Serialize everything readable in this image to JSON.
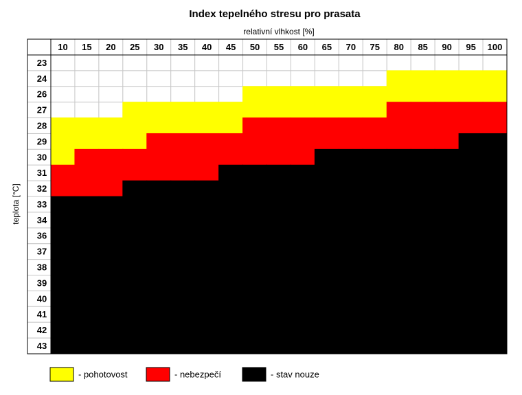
{
  "chart_data": {
    "type": "heatmap",
    "title": "Index tepelného stresu pro prasata",
    "x_label": "relativní vlhkost [%]",
    "y_label": "teplota [°C]",
    "x": [
      10,
      15,
      20,
      25,
      30,
      35,
      40,
      45,
      50,
      55,
      60,
      65,
      70,
      75,
      80,
      85,
      90,
      95,
      100
    ],
    "y": [
      23,
      24,
      26,
      27,
      28,
      29,
      30,
      31,
      32,
      33,
      34,
      36,
      37,
      38,
      39,
      40,
      41,
      42,
      43
    ],
    "series": [
      {
        "name": "- pohotovost",
        "color": "#ffff00"
      },
      {
        "name": "- nebezpečí",
        "color": "#ff0000"
      },
      {
        "name": "- stav nouze",
        "color": "#000000"
      }
    ],
    "values": [
      [
        null,
        null,
        null,
        null,
        null,
        null,
        null,
        null,
        null,
        null,
        null,
        null,
        null,
        null,
        null,
        null,
        null,
        null,
        null
      ],
      [
        null,
        null,
        null,
        null,
        null,
        null,
        null,
        null,
        null,
        null,
        null,
        null,
        null,
        null,
        0,
        0,
        0,
        0,
        0
      ],
      [
        null,
        null,
        null,
        null,
        null,
        null,
        null,
        null,
        0,
        0,
        0,
        0,
        0,
        0,
        0,
        0,
        0,
        0,
        0
      ],
      [
        null,
        null,
        null,
        0,
        0,
        0,
        0,
        0,
        0,
        0,
        0,
        0,
        0,
        0,
        1,
        1,
        1,
        1,
        1
      ],
      [
        0,
        0,
        0,
        0,
        0,
        0,
        0,
        0,
        1,
        1,
        1,
        1,
        1,
        1,
        1,
        1,
        1,
        1,
        1
      ],
      [
        0,
        0,
        0,
        0,
        1,
        1,
        1,
        1,
        1,
        1,
        1,
        1,
        1,
        1,
        1,
        1,
        1,
        2,
        2
      ],
      [
        0,
        1,
        1,
        1,
        1,
        1,
        1,
        1,
        1,
        1,
        1,
        2,
        2,
        2,
        2,
        2,
        2,
        2,
        2
      ],
      [
        1,
        1,
        1,
        1,
        1,
        1,
        1,
        2,
        2,
        2,
        2,
        2,
        2,
        2,
        2,
        2,
        2,
        2,
        2
      ],
      [
        1,
        1,
        1,
        2,
        2,
        2,
        2,
        2,
        2,
        2,
        2,
        2,
        2,
        2,
        2,
        2,
        2,
        2,
        2
      ],
      [
        2,
        2,
        2,
        2,
        2,
        2,
        2,
        2,
        2,
        2,
        2,
        2,
        2,
        2,
        2,
        2,
        2,
        2,
        2
      ],
      [
        2,
        2,
        2,
        2,
        2,
        2,
        2,
        2,
        2,
        2,
        2,
        2,
        2,
        2,
        2,
        2,
        2,
        2,
        2
      ],
      [
        2,
        2,
        2,
        2,
        2,
        2,
        2,
        2,
        2,
        2,
        2,
        2,
        2,
        2,
        2,
        2,
        2,
        2,
        2
      ],
      [
        2,
        2,
        2,
        2,
        2,
        2,
        2,
        2,
        2,
        2,
        2,
        2,
        2,
        2,
        2,
        2,
        2,
        2,
        2
      ],
      [
        2,
        2,
        2,
        2,
        2,
        2,
        2,
        2,
        2,
        2,
        2,
        2,
        2,
        2,
        2,
        2,
        2,
        2,
        2
      ],
      [
        2,
        2,
        2,
        2,
        2,
        2,
        2,
        2,
        2,
        2,
        2,
        2,
        2,
        2,
        2,
        2,
        2,
        2,
        2
      ],
      [
        2,
        2,
        2,
        2,
        2,
        2,
        2,
        2,
        2,
        2,
        2,
        2,
        2,
        2,
        2,
        2,
        2,
        2,
        2
      ],
      [
        2,
        2,
        2,
        2,
        2,
        2,
        2,
        2,
        2,
        2,
        2,
        2,
        2,
        2,
        2,
        2,
        2,
        2,
        2
      ],
      [
        2,
        2,
        2,
        2,
        2,
        2,
        2,
        2,
        2,
        2,
        2,
        2,
        2,
        2,
        2,
        2,
        2,
        2,
        2
      ],
      [
        2,
        2,
        2,
        2,
        2,
        2,
        2,
        2,
        2,
        2,
        2,
        2,
        2,
        2,
        2,
        2,
        2,
        2,
        2
      ]
    ]
  }
}
